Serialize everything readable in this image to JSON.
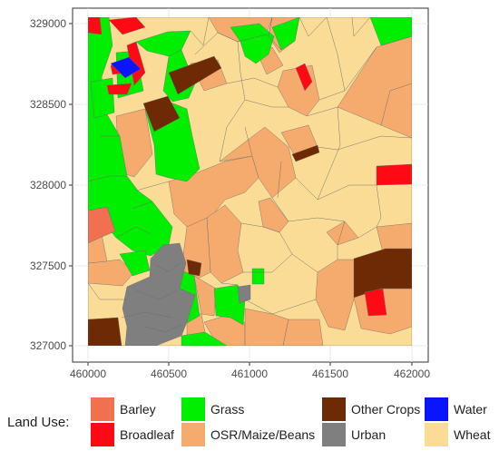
{
  "map": {
    "x_ticks": [
      "460000",
      "460500",
      "461000",
      "461500",
      "462000"
    ],
    "y_ticks": [
      "329000",
      "328500",
      "328000",
      "327500",
      "327000"
    ],
    "x_range": [
      460000,
      462000
    ],
    "y_range": [
      327000,
      329000
    ]
  },
  "legend": {
    "title": "Land Use:",
    "items": [
      {
        "label": "Barley",
        "color": "#F07050"
      },
      {
        "label": "Broadleaf",
        "color": "#FF0A14"
      },
      {
        "label": "Grass",
        "color": "#00EE00"
      },
      {
        "label": "OSR/Maize/Beans",
        "color": "#F5AA6E"
      },
      {
        "label": "Other Crops",
        "color": "#6E2A04"
      },
      {
        "label": "Urban",
        "color": "#7F7F7F"
      },
      {
        "label": "Water",
        "color": "#0A14FF"
      },
      {
        "label": "Wheat",
        "color": "#FADC96"
      }
    ]
  }
}
